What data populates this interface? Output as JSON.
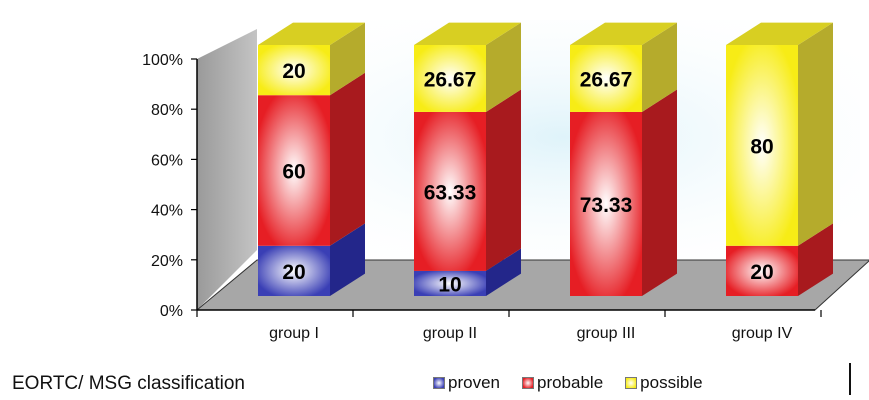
{
  "chart_data": {
    "type": "bar",
    "stacked": true,
    "normalized": true,
    "three_d": true,
    "categories": [
      "group I",
      "group II",
      "group III",
      "group IV"
    ],
    "series": [
      {
        "name": "proven",
        "values": [
          20,
          10,
          0,
          0
        ],
        "color": "#3a3fb5",
        "side_color": "#23268a",
        "top_color": "#2c2fa0"
      },
      {
        "name": "probable",
        "values": [
          60,
          63.33,
          73.33,
          20
        ],
        "color": "#e61e24",
        "side_color": "#a81a1e",
        "top_color": "#c01d22"
      },
      {
        "name": "possible",
        "values": [
          20,
          26.67,
          26.67,
          80
        ],
        "color": "#f7ec16",
        "side_color": "#b5ab2c",
        "top_color": "#d8cf22"
      }
    ],
    "data_labels": [
      [
        "20",
        "10",
        "",
        ""
      ],
      [
        "60",
        "63.33",
        "73.33",
        "20"
      ],
      [
        "20",
        "26.67",
        "26.67",
        "80"
      ]
    ],
    "y_ticks": [
      "0%",
      "20%",
      "40%",
      "60%",
      "80%",
      "100%"
    ],
    "ylim": [
      0,
      100
    ],
    "legend_position": "bottom-right"
  },
  "footer": {
    "title": "EORTC/ MSG classification"
  }
}
